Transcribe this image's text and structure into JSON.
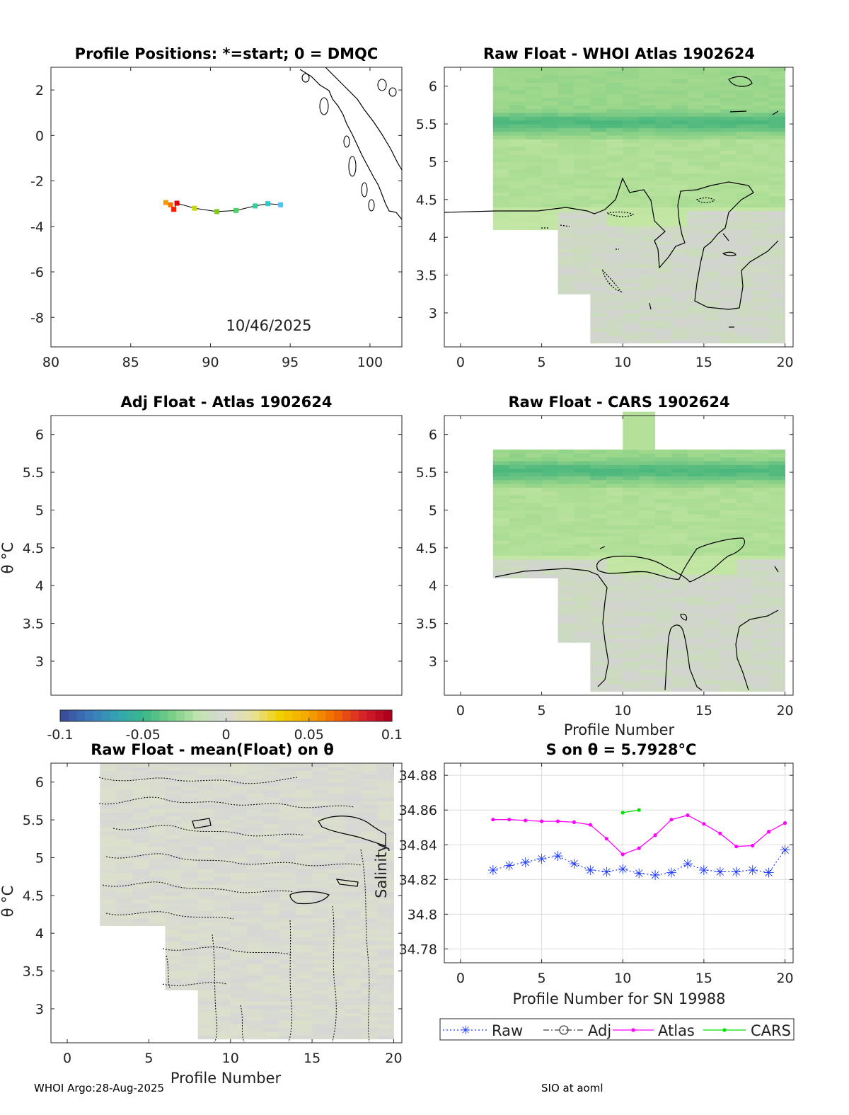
{
  "colors": {
    "raw": "#1f3bff",
    "atlas": "#ff00ff",
    "cars": "#00e000",
    "grey_cell": "#d3d3d3",
    "green_light": "#c3e6a4",
    "green_mid": "#9ed88c",
    "green_dark": "#4bb77c"
  },
  "footer": {
    "left": "WHOI Argo:28-Aug-2025",
    "right": "SIO at aoml"
  },
  "colorbar": {
    "ticks": [
      "-0.1",
      "-0.05",
      "0",
      "0.05",
      "0.1"
    ],
    "range": [
      -0.1,
      0.1
    ]
  },
  "chart_data": [
    {
      "id": "positions",
      "type": "scatter",
      "title": "Profile Positions: *=start; 0 = DMQC",
      "date_label": "10/46/2025",
      "xlim": [
        80,
        102
      ],
      "ylim": [
        -9.3,
        3
      ],
      "xticks": [
        "80",
        "85",
        "90",
        "95",
        "100"
      ],
      "yticks": [
        "2",
        "0",
        "-2",
        "-4",
        "-6",
        "-8"
      ],
      "x": [
        87.2,
        87.5,
        87.7,
        87.9,
        89.0,
        90.4,
        91.6,
        92.8,
        93.6,
        94.4
      ],
      "y": [
        -2.95,
        -3.05,
        -3.25,
        -2.98,
        -3.2,
        -3.35,
        -3.3,
        -3.1,
        -3.0,
        -3.05
      ]
    },
    {
      "id": "raw-whoi",
      "type": "heatmap",
      "title": "Raw Float - WHOI Atlas  1902624",
      "xlim": [
        -1,
        20.5
      ],
      "ylim": [
        2.55,
        6.25
      ],
      "xticks": [
        "0",
        "5",
        "10",
        "15",
        "20"
      ],
      "yticks": [
        "6",
        "5.5",
        "5",
        "4.5",
        "4",
        "3.5",
        "3"
      ]
    },
    {
      "id": "adj-atlas",
      "type": "heatmap",
      "title": "Adj Float - Atlas  1902624",
      "ylabel": "θ °C",
      "xlim": [
        -1,
        20.5
      ],
      "ylim": [
        2.55,
        6.25
      ],
      "yticks": [
        "6",
        "5.5",
        "5",
        "4.5",
        "4",
        "3.5",
        "3"
      ]
    },
    {
      "id": "raw-cars",
      "type": "heatmap",
      "title": "Raw Float - CARS  1902624",
      "xlabel": "Profile Number",
      "xlim": [
        -1,
        20.5
      ],
      "ylim": [
        2.55,
        6.25
      ],
      "xticks": [
        "0",
        "5",
        "10",
        "15",
        "20"
      ],
      "yticks": [
        "6",
        "5.5",
        "5",
        "4.5",
        "4",
        "3.5",
        "3"
      ]
    },
    {
      "id": "raw-mean",
      "type": "heatmap",
      "title": "Raw Float - mean(Float) on θ",
      "xlabel": "Profile Number",
      "ylabel": "θ °C",
      "xlim": [
        -1,
        20.5
      ],
      "ylim": [
        2.55,
        6.25
      ],
      "xticks": [
        "0",
        "5",
        "10",
        "15",
        "20"
      ],
      "yticks": [
        "6",
        "5.5",
        "5",
        "4.5",
        "4",
        "3.5",
        "3"
      ]
    },
    {
      "id": "salinity",
      "type": "line",
      "title": "S on θ = 5.7928°C",
      "xlabel": "Profile Number for SN 19988",
      "ylabel": "Salinity",
      "xlim": [
        -1,
        20.5
      ],
      "ylim": [
        34.772,
        34.887
      ],
      "xticks": [
        "0",
        "5",
        "10",
        "15",
        "20"
      ],
      "yticks": [
        "34.88",
        "34.86",
        "34.84",
        "34.82",
        "34.8",
        "34.78"
      ],
      "legend": [
        "Raw",
        "Adj",
        "Atlas",
        "CARS"
      ],
      "series": [
        {
          "name": "Raw",
          "x": [
            2,
            3,
            4,
            5,
            6,
            7,
            8,
            9,
            10,
            11,
            12,
            13,
            14,
            15,
            16,
            17,
            18,
            19,
            20
          ],
          "values": [
            34.8255,
            34.828,
            34.83,
            34.832,
            34.8335,
            34.829,
            34.8255,
            34.8245,
            34.826,
            34.8235,
            34.8225,
            34.824,
            34.829,
            34.8255,
            34.8245,
            34.8245,
            34.8255,
            34.824,
            34.837
          ]
        },
        {
          "name": "Atlas",
          "x": [
            2,
            3,
            4,
            5,
            6,
            7,
            8,
            9,
            10,
            11,
            12,
            13,
            14,
            15,
            16,
            17,
            18,
            19,
            20
          ],
          "values": [
            34.8545,
            34.8545,
            34.854,
            34.8535,
            34.8535,
            34.853,
            34.8515,
            34.8435,
            34.8345,
            34.838,
            34.8455,
            34.8545,
            34.857,
            34.852,
            34.8465,
            34.839,
            34.8395,
            34.8475,
            34.8525
          ]
        },
        {
          "name": "CARS",
          "x": [
            10,
            11
          ],
          "values": [
            34.8585,
            34.86
          ]
        }
      ]
    }
  ]
}
